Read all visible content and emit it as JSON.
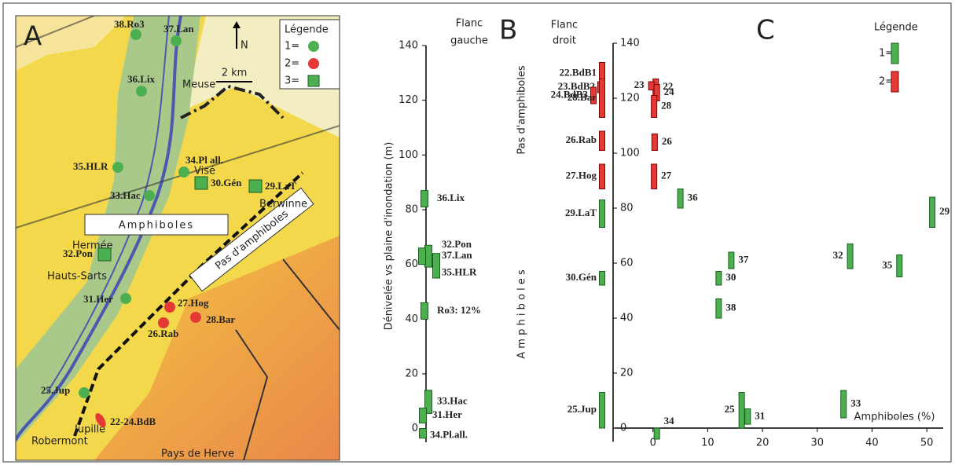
{
  "map": {
    "letter": "A",
    "north": "N",
    "scale": "2 km",
    "legend": {
      "title": "Légende",
      "entries": [
        {
          "label": "1=",
          "color": "#4caf50",
          "shape": "circle"
        },
        {
          "label": "2=",
          "color": "#e53935",
          "shape": "circle"
        },
        {
          "label": "3=",
          "color": "#4caf50",
          "shape": "square"
        }
      ]
    },
    "labels": {
      "amphiboles": "Amphiboles",
      "no_amphiboles": "Pas d'amphiboles",
      "places": [
        "Hauts-Sarts",
        "Robermont",
        "Pays de Herve",
        "Visé",
        "Meuse",
        "Jupille",
        "Hermée",
        "Berwinne"
      ]
    },
    "sites": [
      {
        "label": "38.Ro3",
        "color": "#4caf50",
        "shape": "circle"
      },
      {
        "label": "37.Lan",
        "color": "#4caf50",
        "shape": "circle"
      },
      {
        "label": "36.Lix",
        "color": "#4caf50",
        "shape": "circle"
      },
      {
        "label": "35.HLR",
        "color": "#4caf50",
        "shape": "circle"
      },
      {
        "label": "34.Pl all.",
        "color": "#4caf50",
        "shape": "circle"
      },
      {
        "label": "33.Hac",
        "color": "#4caf50",
        "shape": "circle"
      },
      {
        "label": "30.Gén",
        "color": "#4caf50",
        "shape": "square"
      },
      {
        "label": "29.LaT",
        "color": "#4caf50",
        "shape": "square"
      },
      {
        "label": "32.Pon",
        "color": "#4caf50",
        "shape": "square"
      },
      {
        "label": "31.Her",
        "color": "#4caf50",
        "shape": "circle"
      },
      {
        "label": "27.Hog",
        "color": "#e53935",
        "shape": "circle"
      },
      {
        "label": "26.Rab",
        "color": "#e53935",
        "shape": "circle"
      },
      {
        "label": "28.Bar",
        "color": "#e53935",
        "shape": "circle"
      },
      {
        "label": "25.Jup",
        "color": "#4caf50",
        "shape": "circle"
      },
      {
        "label": "22-24.BdB",
        "color": "#e53935",
        "shape": "ellipse"
      }
    ]
  },
  "chart_data": [
    {
      "type": "range",
      "letter": "B",
      "title": [
        "Flanc",
        "gauche"
      ],
      "y_label": "Dénivelée vs plaine d'inondation (m)",
      "ylim": [
        -5,
        140
      ],
      "yticks": [
        0,
        20,
        40,
        60,
        80,
        100,
        120,
        140
      ],
      "series": [
        {
          "name": "36.Lix",
          "color": "#4caf50",
          "low": 81,
          "high": 87
        },
        {
          "name": "32.Pon",
          "color": "#4caf50",
          "low": 59,
          "high": 67
        },
        {
          "name": "37.Lan",
          "color": "#4caf50",
          "low": 60,
          "high": 66
        },
        {
          "name": "35.HLR",
          "color": "#4caf50",
          "low": 55,
          "high": 64
        },
        {
          "name": "Ro3: 12%",
          "color": "#4caf50",
          "low": 40,
          "high": 46
        },
        {
          "name": "33.Hac",
          "color": "#4caf50",
          "low": 5.5,
          "high": 14
        },
        {
          "name": "31.Her",
          "color": "#4caf50",
          "low": 2,
          "high": 7.5
        },
        {
          "name": "34.Pl.all.",
          "color": "#4caf50",
          "low": -3.5,
          "high": 0
        }
      ]
    },
    {
      "type": "range",
      "letter": "C",
      "title": [
        "Flanc",
        "droit"
      ],
      "x_label": "Amphiboles (%)",
      "ylim": [
        -5,
        140
      ],
      "yticks": [
        0,
        20,
        40,
        60,
        80,
        100,
        120,
        140
      ],
      "xlim": [
        -7,
        53
      ],
      "xticks": [
        0,
        10,
        20,
        30,
        40,
        50
      ],
      "annotations": [
        "Pas d'amphiboles",
        "A m p h i b o l e s"
      ],
      "legend": {
        "title": "Légende",
        "entries": [
          {
            "label": "1=",
            "color": "#4caf50"
          },
          {
            "label": "2=",
            "color": "#e53935"
          }
        ]
      },
      "flank": [
        {
          "name": "22.BdB1",
          "color": "#e53935",
          "low": 125,
          "high": 133
        },
        {
          "name": "23.BdB2",
          "color": "#e53935",
          "low": 122,
          "high": 126
        },
        {
          "name": "24.BdB3",
          "color": "#e53935",
          "low": 118,
          "high": 124
        },
        {
          "name": "28.Bar",
          "color": "#e53935",
          "low": 113,
          "high": 127
        },
        {
          "name": "26.Rab",
          "color": "#e53935",
          "low": 101,
          "high": 108
        },
        {
          "name": "27.Hog",
          "color": "#e53935",
          "low": 87,
          "high": 96
        },
        {
          "name": "29.LaT",
          "color": "#4caf50",
          "low": 73,
          "high": 83
        },
        {
          "name": "30.Gén",
          "color": "#4caf50",
          "low": 52,
          "high": 57
        },
        {
          "name": "25.Jup",
          "color": "#4caf50",
          "low": 0,
          "high": 13
        }
      ],
      "points": [
        {
          "name": "22",
          "color": "#e53935",
          "x": 0.5,
          "low": 121,
          "high": 127
        },
        {
          "name": "23",
          "color": "#e53935",
          "x": -0.3,
          "low": 123,
          "high": 126
        },
        {
          "name": "24",
          "color": "#e53935",
          "x": 0.7,
          "low": 119,
          "high": 125
        },
        {
          "name": "28",
          "color": "#e53935",
          "x": 0.2,
          "low": 113,
          "high": 121
        },
        {
          "name": "26",
          "color": "#e53935",
          "x": 0.3,
          "low": 101,
          "high": 107
        },
        {
          "name": "27",
          "color": "#e53935",
          "x": 0.2,
          "low": 87,
          "high": 96
        },
        {
          "name": "36",
          "color": "#4caf50",
          "x": 5,
          "low": 80,
          "high": 87
        },
        {
          "name": "29",
          "color": "#4caf50",
          "x": 51,
          "low": 73,
          "high": 84
        },
        {
          "name": "37",
          "color": "#4caf50",
          "x": 14.3,
          "low": 58,
          "high": 64
        },
        {
          "name": "32",
          "color": "#4caf50",
          "x": 36,
          "low": 58,
          "high": 67
        },
        {
          "name": "35",
          "color": "#4caf50",
          "x": 45,
          "low": 55,
          "high": 63
        },
        {
          "name": "30",
          "color": "#4caf50",
          "x": 12,
          "low": 52,
          "high": 57
        },
        {
          "name": "38",
          "color": "#4caf50",
          "x": 12,
          "low": 40,
          "high": 47
        },
        {
          "name": "25",
          "color": "#4caf50",
          "x": 16.2,
          "low": 0,
          "high": 13
        },
        {
          "name": "31",
          "color": "#4caf50",
          "x": 17.3,
          "low": 1.4,
          "high": 7
        },
        {
          "name": "33",
          "color": "#4caf50",
          "x": 34.8,
          "low": 3.7,
          "high": 13.7
        },
        {
          "name": "34",
          "color": "#4caf50",
          "x": 0.7,
          "low": -4,
          "high": 0
        }
      ]
    }
  ]
}
